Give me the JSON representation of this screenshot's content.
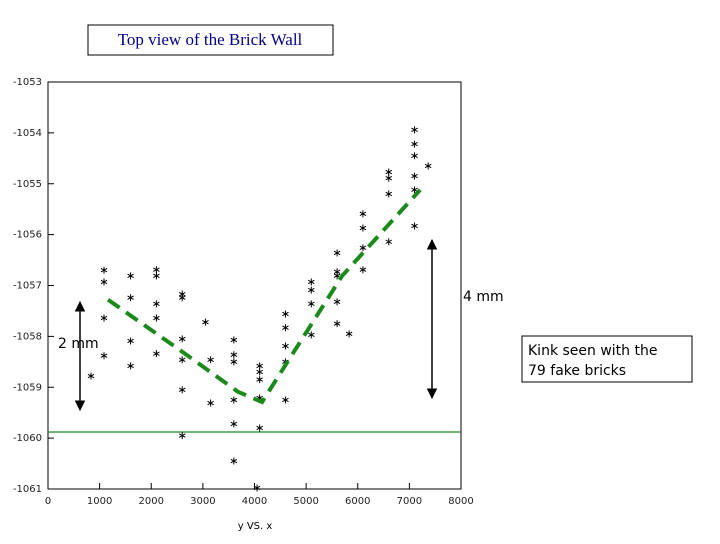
{
  "chart_data": {
    "type": "scatter",
    "title": "Top view of the Brick Wall",
    "xlabel": "y VS. x",
    "xlim": [
      0,
      8000
    ],
    "xticks": [
      0,
      1000,
      2000,
      3000,
      4000,
      5000,
      6000,
      7000,
      8000
    ],
    "ylim": [
      -1061,
      -1053
    ],
    "yticks": [
      -1053,
      -1054,
      -1055,
      -1056,
      -1057,
      -1058,
      -1059,
      -1060,
      -1061
    ],
    "color": "#000000",
    "points": {
      "x": [
        833,
        1085,
        1085,
        1085,
        1085,
        1600,
        1600,
        1600,
        1600,
        2100,
        2100,
        2100,
        2100,
        2100,
        2600,
        2600,
        2600,
        2600,
        2600,
        2600,
        3050,
        3150,
        3150,
        3600,
        3600,
        3600,
        3600,
        3600,
        3600,
        4100,
        4100,
        4100,
        4100,
        4100,
        4050,
        4600,
        4600,
        4600,
        4600,
        4600,
        5100,
        5100,
        5100,
        5100,
        5600,
        5600,
        5600,
        5600,
        5600,
        5833,
        6100,
        6100,
        6100,
        6100,
        6600,
        6600,
        6600,
        6600,
        7100,
        7100,
        7100,
        7100,
        7100,
        7100,
        7364
      ],
      "y": [
        -1058.78,
        -1057.64,
        -1058.38,
        -1056.93,
        -1056.7,
        -1056.81,
        -1057.24,
        -1058.09,
        -1058.58,
        -1056.69,
        -1056.81,
        -1057.36,
        -1057.64,
        -1058.34,
        -1057.17,
        -1057.24,
        -1058.05,
        -1058.46,
        -1059.05,
        -1059.95,
        -1057.72,
        -1058.46,
        -1059.31,
        -1058.07,
        -1058.36,
        -1058.5,
        -1059.25,
        -1059.72,
        -1060.45,
        -1058.58,
        -1058.7,
        -1058.85,
        -1059.21,
        -1059.8,
        -1060.98,
        -1057.56,
        -1057.83,
        -1058.19,
        -1058.5,
        -1059.25,
        -1056.93,
        -1057.09,
        -1057.36,
        -1057.97,
        -1056.36,
        -1056.73,
        -1056.81,
        -1057.32,
        -1057.75,
        -1057.95,
        -1055.59,
        -1055.87,
        -1056.26,
        -1056.69,
        -1054.77,
        -1054.89,
        -1055.2,
        -1056.14,
        -1053.94,
        -1054.22,
        -1054.45,
        -1054.85,
        -1055.12,
        -1055.83,
        -1054.65
      ]
    },
    "fit_line": {
      "color": "#1a8a1a",
      "x": [
        1163,
        2597,
        3682,
        4147,
        4690,
        5698,
        7209
      ],
      "y": [
        -1057.28,
        -1058.3,
        -1059.09,
        -1059.29,
        -1058.42,
        -1056.81,
        -1055.12
      ]
    },
    "reference_line": {
      "y": -1059.88,
      "color": "#1a8a1a"
    },
    "annotations": [
      "2 mm",
      "4 mm"
    ],
    "note": [
      "Kink seen with the",
      "79 fake bricks"
    ]
  }
}
